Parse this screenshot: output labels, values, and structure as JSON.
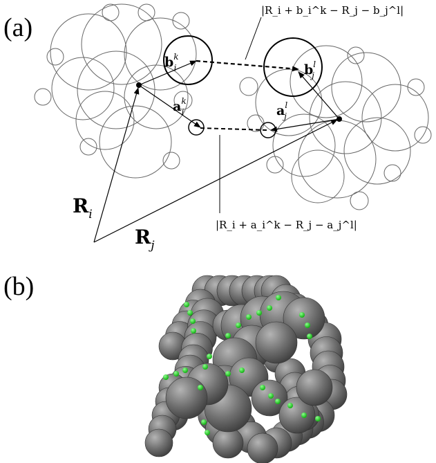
{
  "panels": {
    "a": {
      "label": "(a)"
    },
    "b": {
      "label": "(b)"
    }
  },
  "equations": {
    "top": "|R_i + b_i^k − R_j − b_j^l|",
    "bottom": "|R_i + a_i^k − R_j − a_j^l|"
  },
  "vectors": {
    "Ri": "R",
    "Ri_sub": "i",
    "Rj": "R",
    "Rj_sub": "j",
    "ai": "a",
    "ai_sub": "i",
    "ai_sup": "k",
    "aj": "a",
    "aj_sub": "j",
    "aj_sup": "l",
    "bi": "b",
    "bi_sub": "i",
    "bi_sup": "k",
    "bj": "b",
    "bj_sub": "j",
    "bj_sup": "l"
  },
  "colors": {
    "sphere": "#6b6b6b",
    "sphere_highlight": "#a9a9a9",
    "patch": "#22dd22",
    "line": "#000000",
    "circle_outline": "#666666"
  }
}
